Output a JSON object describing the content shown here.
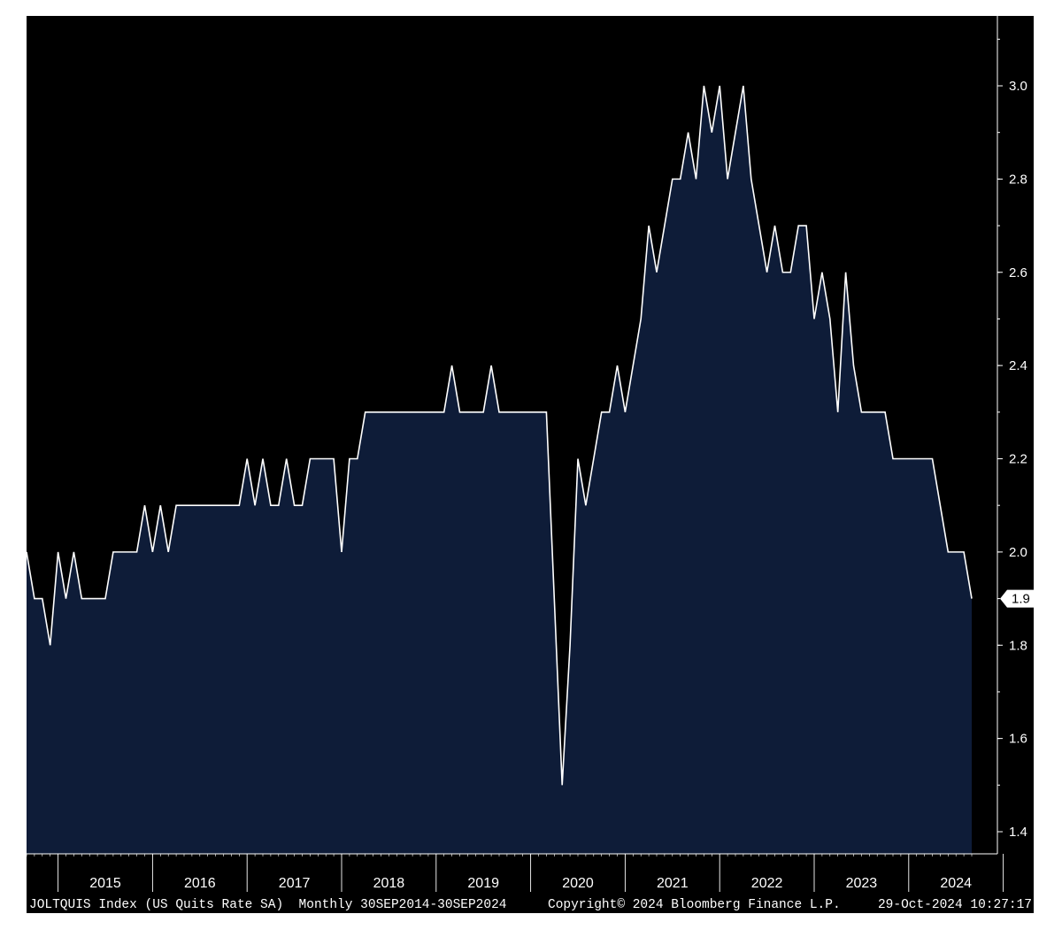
{
  "footer": {
    "left": "JOLTQUIS Index (US Quits Rate SA)  Monthly 30SEP2014-30SEP2024",
    "center": "Copyright© 2024 Bloomberg Finance L.P.",
    "right": "29-Oct-2024 10:27:17"
  },
  "colors": {
    "background": "#000000",
    "fill": "#0e1c38",
    "line": "#ffffff"
  },
  "chart_data": {
    "type": "area",
    "title": "",
    "xlabel": "",
    "ylabel": "",
    "ylim": [
      1.35,
      3.15
    ],
    "y_ticks": [
      "1.4",
      "1.6",
      "1.8",
      "2.0",
      "2.2",
      "2.4",
      "2.6",
      "2.8",
      "3.0"
    ],
    "x_tick_labels": [
      "2015",
      "2016",
      "2017",
      "2018",
      "2019",
      "2020",
      "2021",
      "2022",
      "2023",
      "2024"
    ],
    "x_start": "2014-09",
    "x_end": "2024-09",
    "frequency": "monthly",
    "grid": false,
    "last_value_label": "1.9",
    "series": [
      {
        "values": [
          2.0,
          1.9,
          1.9,
          1.8,
          2.0,
          1.9,
          2.0,
          1.9,
          1.9,
          1.9,
          1.9,
          2.0,
          2.0,
          2.0,
          2.0,
          2.1,
          2.0,
          2.1,
          2.0,
          2.1,
          2.1,
          2.1,
          2.1,
          2.1,
          2.1,
          2.1,
          2.1,
          2.1,
          2.2,
          2.1,
          2.2,
          2.1,
          2.1,
          2.2,
          2.1,
          2.1,
          2.2,
          2.2,
          2.2,
          2.2,
          2.0,
          2.2,
          2.2,
          2.3,
          2.3,
          2.3,
          2.3,
          2.3,
          2.3,
          2.3,
          2.3,
          2.3,
          2.3,
          2.3,
          2.4,
          2.3,
          2.3,
          2.3,
          2.3,
          2.4,
          2.3,
          2.3,
          2.3,
          2.3,
          2.3,
          2.3,
          2.3,
          1.9,
          1.5,
          1.8,
          2.2,
          2.1,
          2.2,
          2.3,
          2.3,
          2.4,
          2.3,
          2.4,
          2.5,
          2.7,
          2.6,
          2.7,
          2.8,
          2.8,
          2.9,
          2.8,
          3.0,
          2.9,
          3.0,
          2.8,
          2.9,
          3.0,
          2.8,
          2.7,
          2.6,
          2.7,
          2.6,
          2.6,
          2.7,
          2.7,
          2.5,
          2.6,
          2.5,
          2.3,
          2.6,
          2.4,
          2.3,
          2.3,
          2.3,
          2.3,
          2.2,
          2.2,
          2.2,
          2.2,
          2.2,
          2.2,
          2.1,
          2.0,
          2.0,
          2.0,
          1.9
        ]
      }
    ]
  }
}
